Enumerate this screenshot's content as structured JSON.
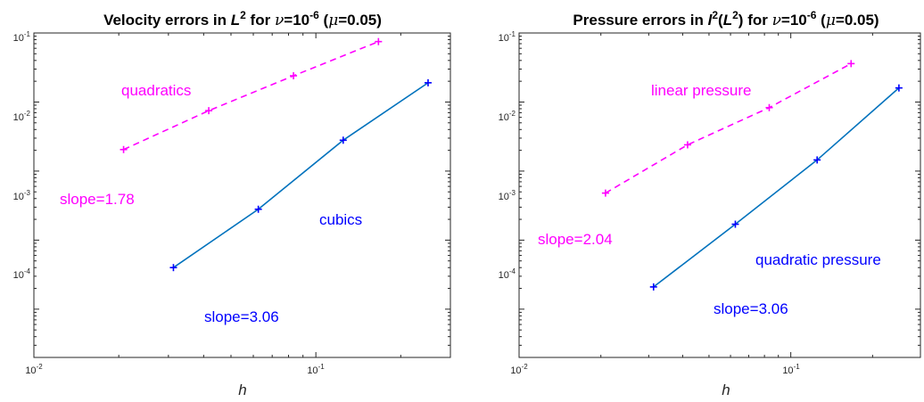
{
  "chart_data": [
    {
      "type": "line",
      "title": "Velocity errors in L2 for ν=10-6 (μ=0.05)",
      "title_parts": {
        "pre": "Velocity errors in ",
        "norm": "L",
        "norm_sup": "2",
        "mid": " for ",
        "nu": "ν",
        "eq": "=10",
        "exp": "-6",
        "par": " (",
        "mu": "μ",
        "mu_val": "=0.05)"
      },
      "xlabel": "h",
      "ylabel": "",
      "xscale": "log",
      "yscale": "log",
      "xlim": [
        0.01,
        0.3
      ],
      "ylim": [
        2e-06,
        0.1
      ],
      "x_ticks": [
        {
          "base": "10",
          "exp": "-2"
        },
        {
          "base": "10",
          "exp": "-1"
        }
      ],
      "y_ticks": [
        {
          "base": "10",
          "exp": "-4"
        },
        {
          "base": "10",
          "exp": "-3"
        },
        {
          "base": "10",
          "exp": "-2"
        },
        {
          "base": "10",
          "exp": "-1"
        }
      ],
      "series": [
        {
          "color": "#ff00ff",
          "linestyle": "dashed",
          "marker": "+",
          "x": [
            0.0208,
            0.0417,
            0.0833,
            0.1667
          ],
          "y": [
            0.00205,
            0.0075,
            0.024,
            0.075
          ]
        },
        {
          "color": "#0000ff",
          "line_color": "#0072bd",
          "linestyle": "solid",
          "marker": "+",
          "x": [
            0.03125,
            0.0625,
            0.125,
            0.25
          ],
          "y": [
            4e-05,
            0.00028,
            0.0028,
            0.019
          ]
        }
      ],
      "annotations": [
        {
          "text": "quadratics",
          "color": "#ff00ff"
        },
        {
          "text": "slope=1.78",
          "color": "#ff00ff"
        },
        {
          "text": "cubics",
          "color": "#0000ff"
        },
        {
          "text": "slope=3.06",
          "color": "#0000ff"
        }
      ],
      "grid": false
    },
    {
      "type": "line",
      "title": "Pressure errors in l2(L2) for ν=10-6 (μ=0.05)",
      "title_parts": {
        "pre": "Pressure errors in ",
        "norm": "l",
        "norm_sup": "2",
        "norm2_pre": "(",
        "norm2": "L",
        "norm2_sup": "2",
        "norm2_post": ")",
        "mid": " for ",
        "nu": "ν",
        "eq": "=10",
        "exp": "-6",
        "par": " (",
        "mu": "μ",
        "mu_val": "=0.05)"
      },
      "xlabel": "h",
      "ylabel": "",
      "xscale": "log",
      "yscale": "log",
      "xlim": [
        0.01,
        0.3
      ],
      "ylim": [
        2e-06,
        0.1
      ],
      "x_ticks": [
        {
          "base": "10",
          "exp": "-2"
        },
        {
          "base": "10",
          "exp": "-1"
        }
      ],
      "y_ticks": [
        {
          "base": "10",
          "exp": "-4"
        },
        {
          "base": "10",
          "exp": "-3"
        },
        {
          "base": "10",
          "exp": "-2"
        },
        {
          "base": "10",
          "exp": "-1"
        }
      ],
      "series": [
        {
          "color": "#ff00ff",
          "linestyle": "dashed",
          "marker": "+",
          "x": [
            0.0208,
            0.0417,
            0.0833,
            0.1667
          ],
          "y": [
            0.00048,
            0.0024,
            0.0083,
            0.036
          ]
        },
        {
          "color": "#0000ff",
          "line_color": "#0072bd",
          "linestyle": "solid",
          "marker": "+",
          "x": [
            0.03125,
            0.0625,
            0.125,
            0.25
          ],
          "y": [
            2.1e-05,
            0.00017,
            0.00145,
            0.016
          ]
        }
      ],
      "annotations": [
        {
          "text": "linear pressure",
          "color": "#ff00ff"
        },
        {
          "text": "slope=2.04",
          "color": "#ff00ff"
        },
        {
          "text": "quadratic pressure",
          "color": "#0000ff"
        },
        {
          "text": "slope=3.06",
          "color": "#0000ff"
        }
      ],
      "grid": false
    }
  ]
}
